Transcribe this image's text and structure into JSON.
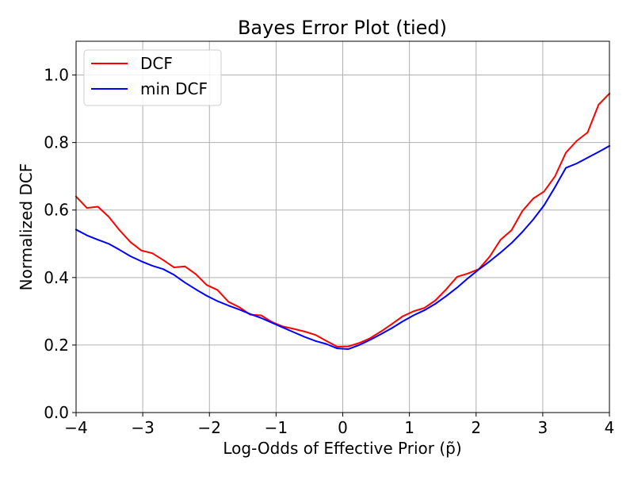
{
  "chart_data": {
    "type": "line",
    "title": "Bayes Error Plot (tied)",
    "xlabel": "Log-Odds of Effective Prior (p̃)",
    "ylabel": "Normalized DCF",
    "xlim": [
      -4,
      4
    ],
    "ylim": [
      0.0,
      1.1
    ],
    "grid": true,
    "legend_position": "top-left",
    "x_ticks": [
      -4,
      -3,
      -2,
      -1,
      0,
      1,
      2,
      3,
      4
    ],
    "x_tick_labels": [
      "−4",
      "−3",
      "−2",
      "−1",
      "0",
      "1",
      "2",
      "3",
      "4"
    ],
    "y_ticks": [
      0.0,
      0.2,
      0.4,
      0.6,
      0.8,
      1.0
    ],
    "y_tick_labels": [
      "0.0",
      "0.2",
      "0.4",
      "0.6",
      "0.8",
      "1.0"
    ],
    "x": [
      -4.0,
      -3.837,
      -3.673,
      -3.51,
      -3.347,
      -3.184,
      -3.02,
      -2.857,
      -2.694,
      -2.531,
      -2.367,
      -2.204,
      -2.041,
      -1.878,
      -1.714,
      -1.551,
      -1.388,
      -1.224,
      -1.061,
      -0.898,
      -0.735,
      -0.571,
      -0.408,
      -0.245,
      -0.082,
      0.082,
      0.245,
      0.408,
      0.571,
      0.735,
      0.898,
      1.061,
      1.224,
      1.388,
      1.551,
      1.714,
      1.878,
      2.041,
      2.204,
      2.367,
      2.531,
      2.694,
      2.857,
      3.02,
      3.184,
      3.347,
      3.51,
      3.673,
      3.837,
      4.0
    ],
    "series": [
      {
        "name": "DCF",
        "color": "#ff0000",
        "values": [
          0.64,
          0.606,
          0.61,
          0.58,
          0.54,
          0.505,
          0.48,
          0.472,
          0.452,
          0.43,
          0.433,
          0.41,
          0.378,
          0.363,
          0.328,
          0.312,
          0.29,
          0.288,
          0.268,
          0.255,
          0.248,
          0.24,
          0.23,
          0.212,
          0.195,
          0.196,
          0.206,
          0.22,
          0.24,
          0.262,
          0.285,
          0.3,
          0.31,
          0.332,
          0.365,
          0.402,
          0.412,
          0.425,
          0.462,
          0.512,
          0.54,
          0.597,
          0.634,
          0.655,
          0.7,
          0.77,
          0.805,
          0.83,
          0.912,
          0.945
        ]
      },
      {
        "name": "min DCF",
        "color": "#0000ff",
        "values": [
          0.542,
          0.525,
          0.512,
          0.5,
          0.482,
          0.463,
          0.448,
          0.435,
          0.425,
          0.408,
          0.385,
          0.365,
          0.346,
          0.33,
          0.317,
          0.305,
          0.292,
          0.28,
          0.266,
          0.252,
          0.238,
          0.224,
          0.212,
          0.203,
          0.19,
          0.188,
          0.2,
          0.215,
          0.232,
          0.25,
          0.27,
          0.288,
          0.303,
          0.322,
          0.345,
          0.37,
          0.398,
          0.424,
          0.448,
          0.474,
          0.502,
          0.535,
          0.572,
          0.614,
          0.668,
          0.725,
          0.738,
          0.755,
          0.772,
          0.79
        ]
      }
    ]
  }
}
